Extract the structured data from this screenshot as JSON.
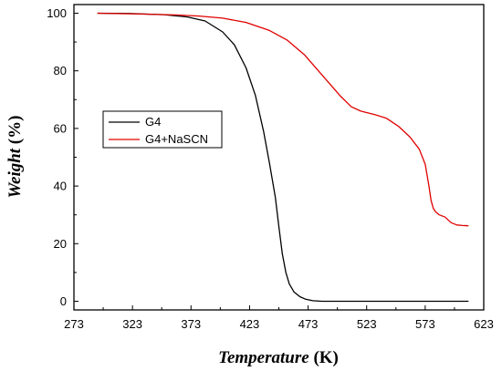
{
  "chart_data": {
    "type": "line",
    "xlabel": "Temperature",
    "xunit": "K",
    "ylabel": "Weight",
    "yunit": "%",
    "xlim": [
      273,
      623
    ],
    "ylim": [
      -3,
      103
    ],
    "xticks": [
      273,
      323,
      373,
      423,
      473,
      523,
      573,
      623
    ],
    "yticks": [
      0,
      20,
      40,
      60,
      80,
      100
    ],
    "grid": false,
    "legend_position": "middle-left",
    "series": [
      {
        "name": "G4",
        "color": "#000000",
        "x": [
          293,
          320,
          350,
          370,
          385,
          400,
          410,
          420,
          428,
          435,
          440,
          445,
          448,
          451,
          454,
          457,
          461,
          466,
          471,
          477,
          485,
          500,
          550,
          600,
          610
        ],
        "y": [
          100,
          99.9,
          99.5,
          98.7,
          97.3,
          93.5,
          89.0,
          81.0,
          71.5,
          59.0,
          48.0,
          36.0,
          26.0,
          16.5,
          10.0,
          6.0,
          3.2,
          1.6,
          0.7,
          0.2,
          0,
          0,
          0,
          0,
          0
        ]
      },
      {
        "name": "G4+NaSCN",
        "color": "#e00000",
        "x": [
          293,
          330,
          360,
          380,
          400,
          420,
          440,
          455,
          470,
          485,
          500,
          510,
          518,
          523,
          530,
          540,
          550,
          560,
          568,
          573,
          576,
          578,
          580,
          582,
          585,
          590,
          595,
          600,
          605,
          610
        ],
        "y": [
          100,
          99.7,
          99.4,
          99.0,
          98.3,
          96.8,
          94.0,
          90.7,
          85.5,
          78.5,
          71.5,
          67.5,
          66.0,
          65.5,
          64.8,
          63.5,
          60.8,
          57.0,
          52.8,
          47.5,
          40.5,
          35.0,
          32.2,
          31.0,
          30.0,
          29.2,
          27.3,
          26.5,
          26.3,
          26.2
        ]
      }
    ]
  }
}
